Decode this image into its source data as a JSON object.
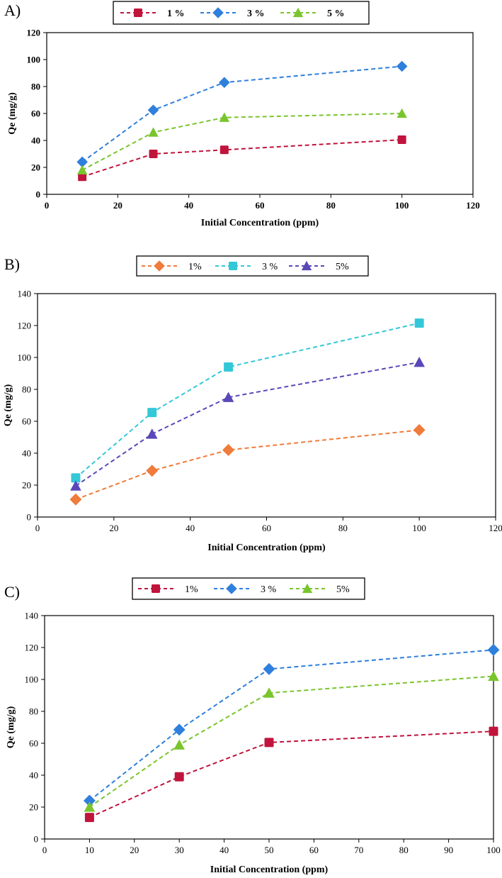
{
  "chart_data": [
    {
      "type": "line",
      "panel_label": "A)",
      "title": "",
      "xlabel": "Initial Concentration (ppm)",
      "ylabel": "Qe (mg/g)",
      "xlim": [
        0,
        120
      ],
      "ylim": [
        0,
        120
      ],
      "xticks": [
        0,
        20,
        40,
        60,
        80,
        100,
        120
      ],
      "yticks": [
        0,
        20,
        40,
        60,
        80,
        100,
        120
      ],
      "x": [
        10,
        30,
        50,
        100
      ],
      "legend_position": "top-center",
      "bold_text": true,
      "series": [
        {
          "name": "1 %",
          "values": [
            13,
            30,
            33,
            40.5
          ],
          "color": "#c0143c",
          "marker": "square"
        },
        {
          "name": "3 %",
          "values": [
            24,
            62.5,
            83,
            95
          ],
          "color": "#2f7fdc",
          "marker": "diamond"
        },
        {
          "name": "5 %",
          "values": [
            18,
            46,
            57,
            60
          ],
          "color": "#7ac52e",
          "marker": "triangle"
        }
      ]
    },
    {
      "type": "line",
      "panel_label": "B)",
      "title": "",
      "xlabel": "Initial Concentration (ppm)",
      "ylabel": "Qe (mg/g)",
      "xlim": [
        0,
        120
      ],
      "ylim": [
        0,
        140
      ],
      "xticks": [
        0,
        20,
        40,
        60,
        80,
        100,
        120
      ],
      "yticks": [
        0,
        20,
        40,
        60,
        80,
        100,
        120,
        140
      ],
      "x": [
        10,
        30,
        50,
        100
      ],
      "legend_position": "top-center",
      "bold_text": false,
      "series": [
        {
          "name": "1%",
          "values": [
            11,
            29,
            42,
            54.5
          ],
          "color": "#f07b3a",
          "marker": "diamond"
        },
        {
          "name": "3 %",
          "values": [
            24.5,
            65.5,
            94,
            121.5
          ],
          "color": "#33c8d8",
          "marker": "square"
        },
        {
          "name": "5%",
          "values": [
            19.5,
            52,
            75,
            97
          ],
          "color": "#5a48b8",
          "marker": "triangle"
        }
      ]
    },
    {
      "type": "line",
      "panel_label": "C)",
      "title": "",
      "xlabel": "Initial Concentration (ppm)",
      "ylabel": "Qe (mg/g)",
      "xlim": [
        0,
        100
      ],
      "ylim": [
        0,
        140
      ],
      "xticks": [
        0,
        10,
        20,
        30,
        40,
        50,
        60,
        70,
        80,
        90,
        100
      ],
      "yticks": [
        0,
        20,
        40,
        60,
        80,
        100,
        120,
        140
      ],
      "x": [
        10,
        30,
        50,
        100
      ],
      "legend_position": "top-center",
      "bold_text": false,
      "series": [
        {
          "name": "1%",
          "values": [
            13.5,
            39,
            60.5,
            67.5
          ],
          "color": "#c0143c",
          "marker": "square"
        },
        {
          "name": "3 %",
          "values": [
            24,
            68.5,
            106.5,
            118.5
          ],
          "color": "#2f7fdc",
          "marker": "diamond"
        },
        {
          "name": "5%",
          "values": [
            20,
            59,
            91.5,
            102
          ],
          "color": "#7ac52e",
          "marker": "triangle"
        }
      ]
    }
  ]
}
